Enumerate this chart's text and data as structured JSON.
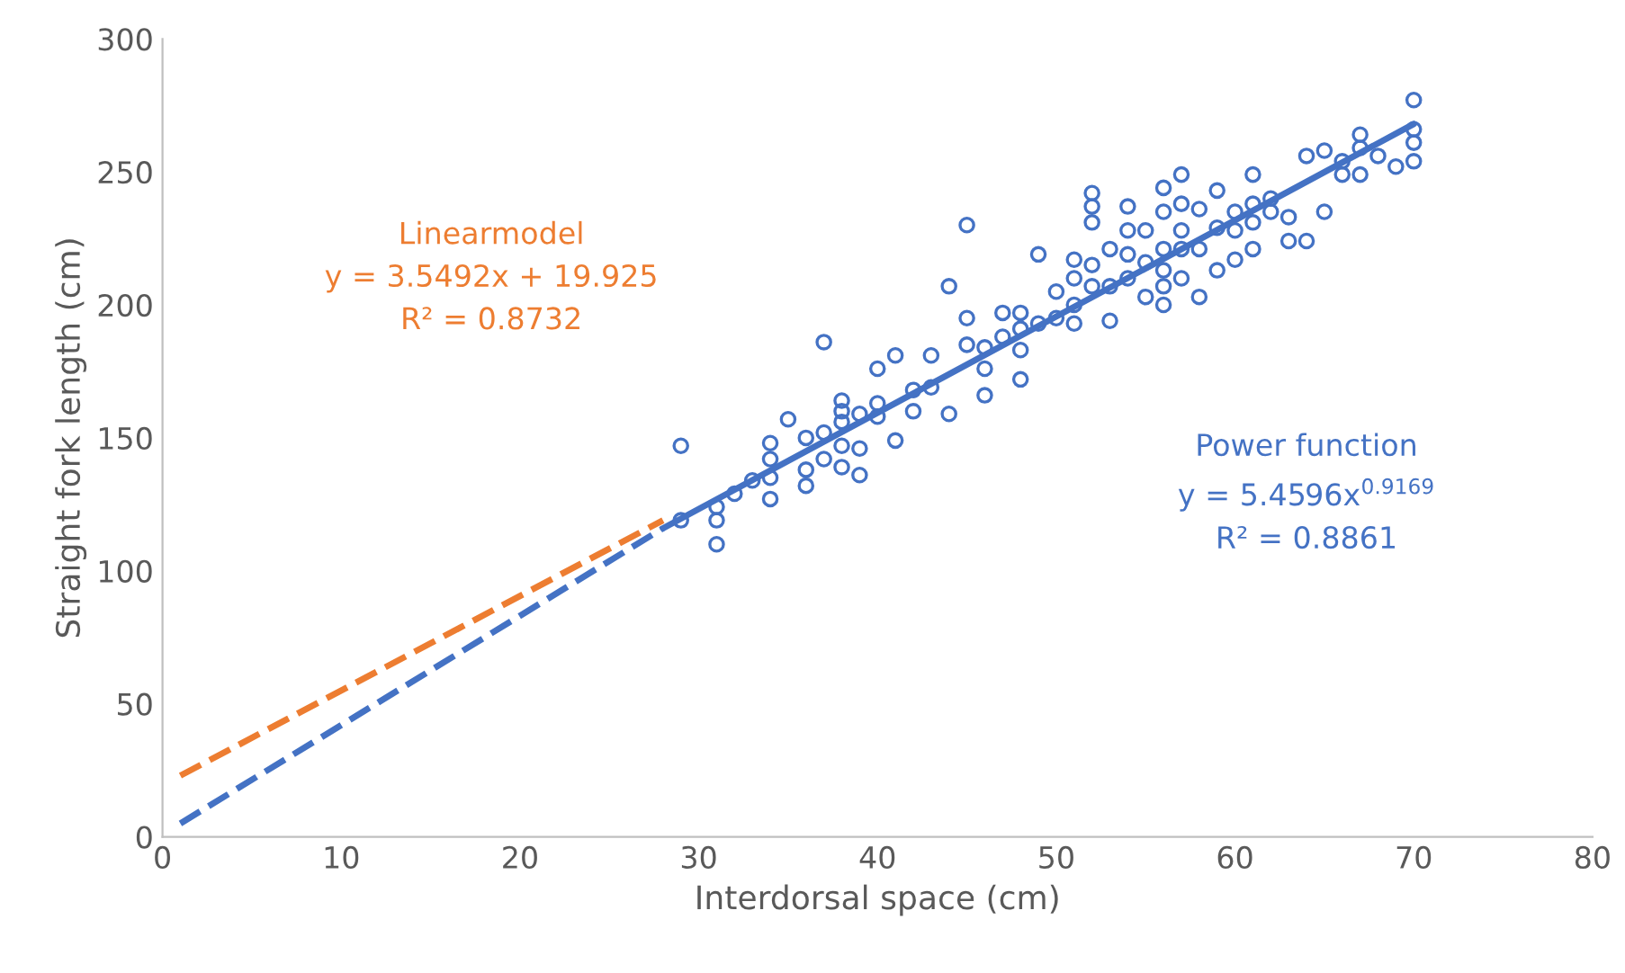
{
  "chart_data": {
    "type": "scatter",
    "xlabel": "Interdorsal space (cm)",
    "ylabel": "Straight fork length (cm)",
    "xlim": [
      0,
      80
    ],
    "xticks": [
      0,
      10,
      20,
      30,
      40,
      50,
      60,
      70,
      80
    ],
    "ylim": [
      0,
      300
    ],
    "yticks": [
      0,
      50,
      100,
      150,
      200,
      250,
      300
    ],
    "grid": false,
    "legend": false,
    "marker": "circle",
    "series": [
      {
        "color": "#4472c4",
        "x": [
          29,
          29,
          31,
          31,
          31,
          32,
          33,
          34,
          34,
          34,
          34,
          35,
          36,
          36,
          36,
          37,
          37,
          37,
          38,
          38,
          38,
          38,
          38,
          39,
          39,
          39,
          40,
          40,
          40,
          41,
          41,
          42,
          42,
          43,
          43,
          44,
          44,
          45,
          45,
          45,
          46,
          46,
          46,
          47,
          47,
          48,
          48,
          48,
          48,
          49,
          49,
          50,
          50,
          51,
          51,
          51,
          51,
          52,
          52,
          52,
          52,
          52,
          53,
          53,
          53,
          54,
          54,
          54,
          54,
          55,
          55,
          55,
          56,
          56,
          56,
          56,
          56,
          56,
          57,
          57,
          57,
          57,
          57,
          58,
          58,
          58,
          59,
          59,
          59,
          60,
          60,
          60,
          61,
          61,
          61,
          61,
          62,
          62,
          63,
          63,
          64,
          64,
          65,
          65,
          66,
          66,
          67,
          67,
          67,
          68,
          69,
          70,
          70,
          70,
          70
        ],
        "values": [
          147,
          119,
          110,
          119,
          124,
          129,
          134,
          148,
          142,
          135,
          127,
          157,
          150,
          138,
          132,
          186,
          152,
          142,
          164,
          160,
          156,
          147,
          139,
          146,
          136,
          159,
          158,
          176,
          163,
          181,
          149,
          160,
          168,
          181,
          169,
          207,
          159,
          230,
          195,
          185,
          184,
          176,
          166,
          188,
          197,
          197,
          191,
          172,
          183,
          219,
          193,
          195,
          205,
          217,
          200,
          193,
          210,
          242,
          237,
          231,
          215,
          207,
          221,
          194,
          207,
          237,
          219,
          228,
          210,
          216,
          228,
          203,
          244,
          235,
          221,
          207,
          200,
          213,
          249,
          238,
          228,
          221,
          210,
          236,
          221,
          203,
          243,
          213,
          229,
          235,
          228,
          217,
          249,
          238,
          221,
          231,
          235,
          240,
          224,
          233,
          256,
          224,
          235,
          258,
          254,
          249,
          264,
          259,
          249,
          256,
          252,
          277,
          266,
          261,
          254
        ]
      },
      {
        "type": "line",
        "color": "#ed7d31",
        "line_style": "dashed",
        "marker": "none",
        "x": [
          1,
          28
        ],
        "values": [
          23,
          119
        ]
      },
      {
        "type": "line",
        "color": "#4472c4",
        "line_style": "dashed",
        "marker": "none",
        "x": [
          1,
          28
        ],
        "values": [
          5,
          116
        ]
      },
      {
        "type": "line",
        "color": "#4472c4",
        "line_style": "solid",
        "marker": "none",
        "x": [
          28,
          70
        ],
        "values": [
          116,
          268
        ]
      }
    ],
    "annotations": [
      "Linearmodel\ny = 3.5492x + 19.925\nR² = 0.8732",
      "Power function\ny = 5.4596x$^{0.9169}$\nR² = 0.8861"
    ]
  }
}
